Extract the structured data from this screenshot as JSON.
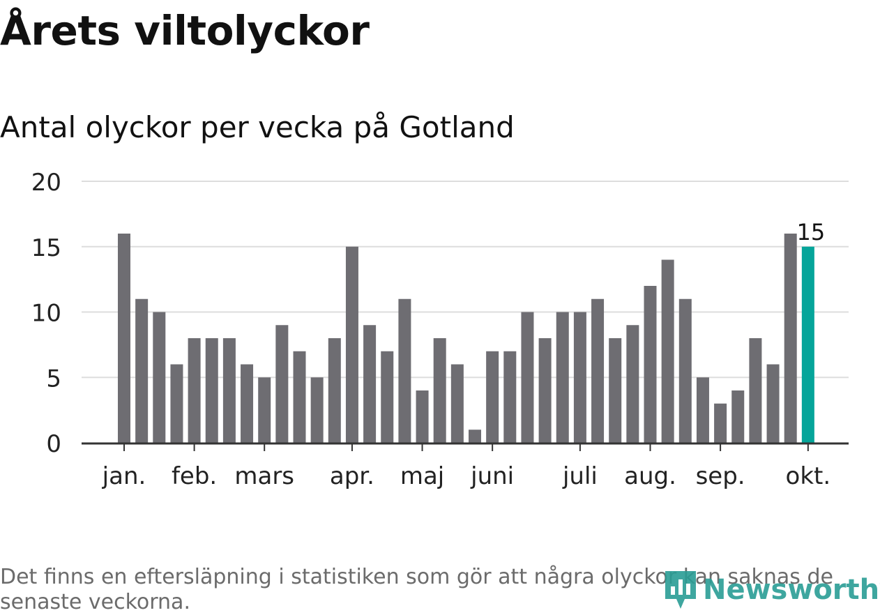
{
  "title": "Årets viltolyckor",
  "subtitle": "Antal olyckor per vecka på Gotland",
  "footnote": "Det finns en eftersläpning i statistiken som gör att några olyckor kan saknas de senaste veckorna.",
  "logo": {
    "text": "Newsworthy",
    "icon": "bar-chart-logo-icon"
  },
  "colors": {
    "bar": "#6e6d72",
    "highlight": "#05a59a",
    "grid": "#dddddd",
    "axis": "#333333",
    "text": "#222222"
  },
  "chart_data": {
    "type": "bar",
    "title": "Antal olyckor per vecka på Gotland",
    "xlabel": "",
    "ylabel": "",
    "ylim": [
      0,
      20
    ],
    "yticks": [
      0,
      5,
      10,
      15,
      20
    ],
    "values": [
      16,
      11,
      10,
      6,
      8,
      8,
      8,
      6,
      5,
      9,
      7,
      5,
      8,
      15,
      9,
      7,
      11,
      4,
      8,
      6,
      1,
      7,
      7,
      10,
      8,
      10,
      10,
      11,
      8,
      9,
      12,
      14,
      11,
      5,
      3,
      4,
      8,
      6,
      16,
      15
    ],
    "highlight_index": 39,
    "highlight_label": "15",
    "month_labels": [
      {
        "label": "jan.",
        "bar_index": 0
      },
      {
        "label": "feb.",
        "bar_index": 4
      },
      {
        "label": "mars",
        "bar_index": 8
      },
      {
        "label": "apr.",
        "bar_index": 13
      },
      {
        "label": "maj",
        "bar_index": 17
      },
      {
        "label": "juni",
        "bar_index": 21
      },
      {
        "label": "juli",
        "bar_index": 26
      },
      {
        "label": "aug.",
        "bar_index": 30
      },
      {
        "label": "sep.",
        "bar_index": 34
      },
      {
        "label": "okt.",
        "bar_index": 39
      }
    ],
    "grid": true,
    "legend": "none"
  }
}
